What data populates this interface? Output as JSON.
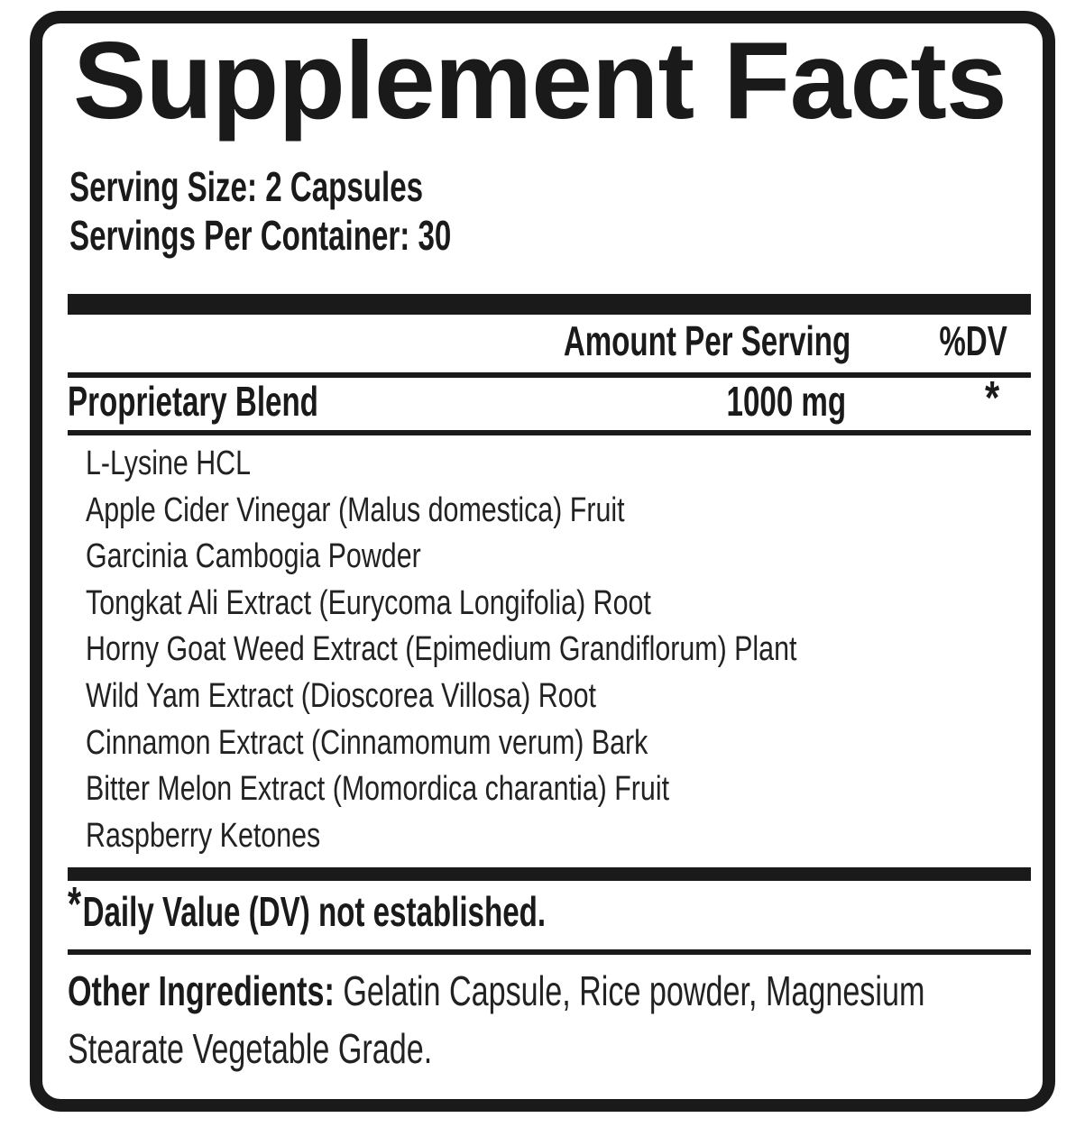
{
  "label": {
    "title": "Supplement Facts",
    "serving_size": "Serving Size: 2 Capsules",
    "servings_per_container": "Servings Per Container: 30",
    "columns": {
      "amount_header": "Amount Per Serving",
      "dv_header": "%DV"
    },
    "blend": {
      "name": "Proprietary Blend",
      "amount": "1000 mg",
      "dv_marker": "*",
      "ingredients": [
        "L-Lysine HCL",
        "Apple Cider Vinegar (Malus domestica) Fruit",
        "Garcinia Cambogia Powder",
        "Tongkat Ali Extract (Eurycoma Longifolia) Root",
        "Horny Goat Weed Extract (Epimedium Grandiflorum) Plant",
        "Wild Yam Extract (Dioscorea Villosa) Root",
        "Cinnamon Extract (Cinnamomum verum) Bark",
        "Bitter Melon Extract (Momordica charantia) Fruit",
        "Raspberry Ketones"
      ]
    },
    "footnote": {
      "marker": "*",
      "text": "Daily Value (DV) not established."
    },
    "other_ingredients": {
      "label": "Other Ingredients:",
      "text": "Gelatin Capsule, Rice powder, Magnesium Stearate Vegetable Grade."
    }
  },
  "colors": {
    "ink": "#1a1a1a",
    "background": "#ffffff"
  }
}
